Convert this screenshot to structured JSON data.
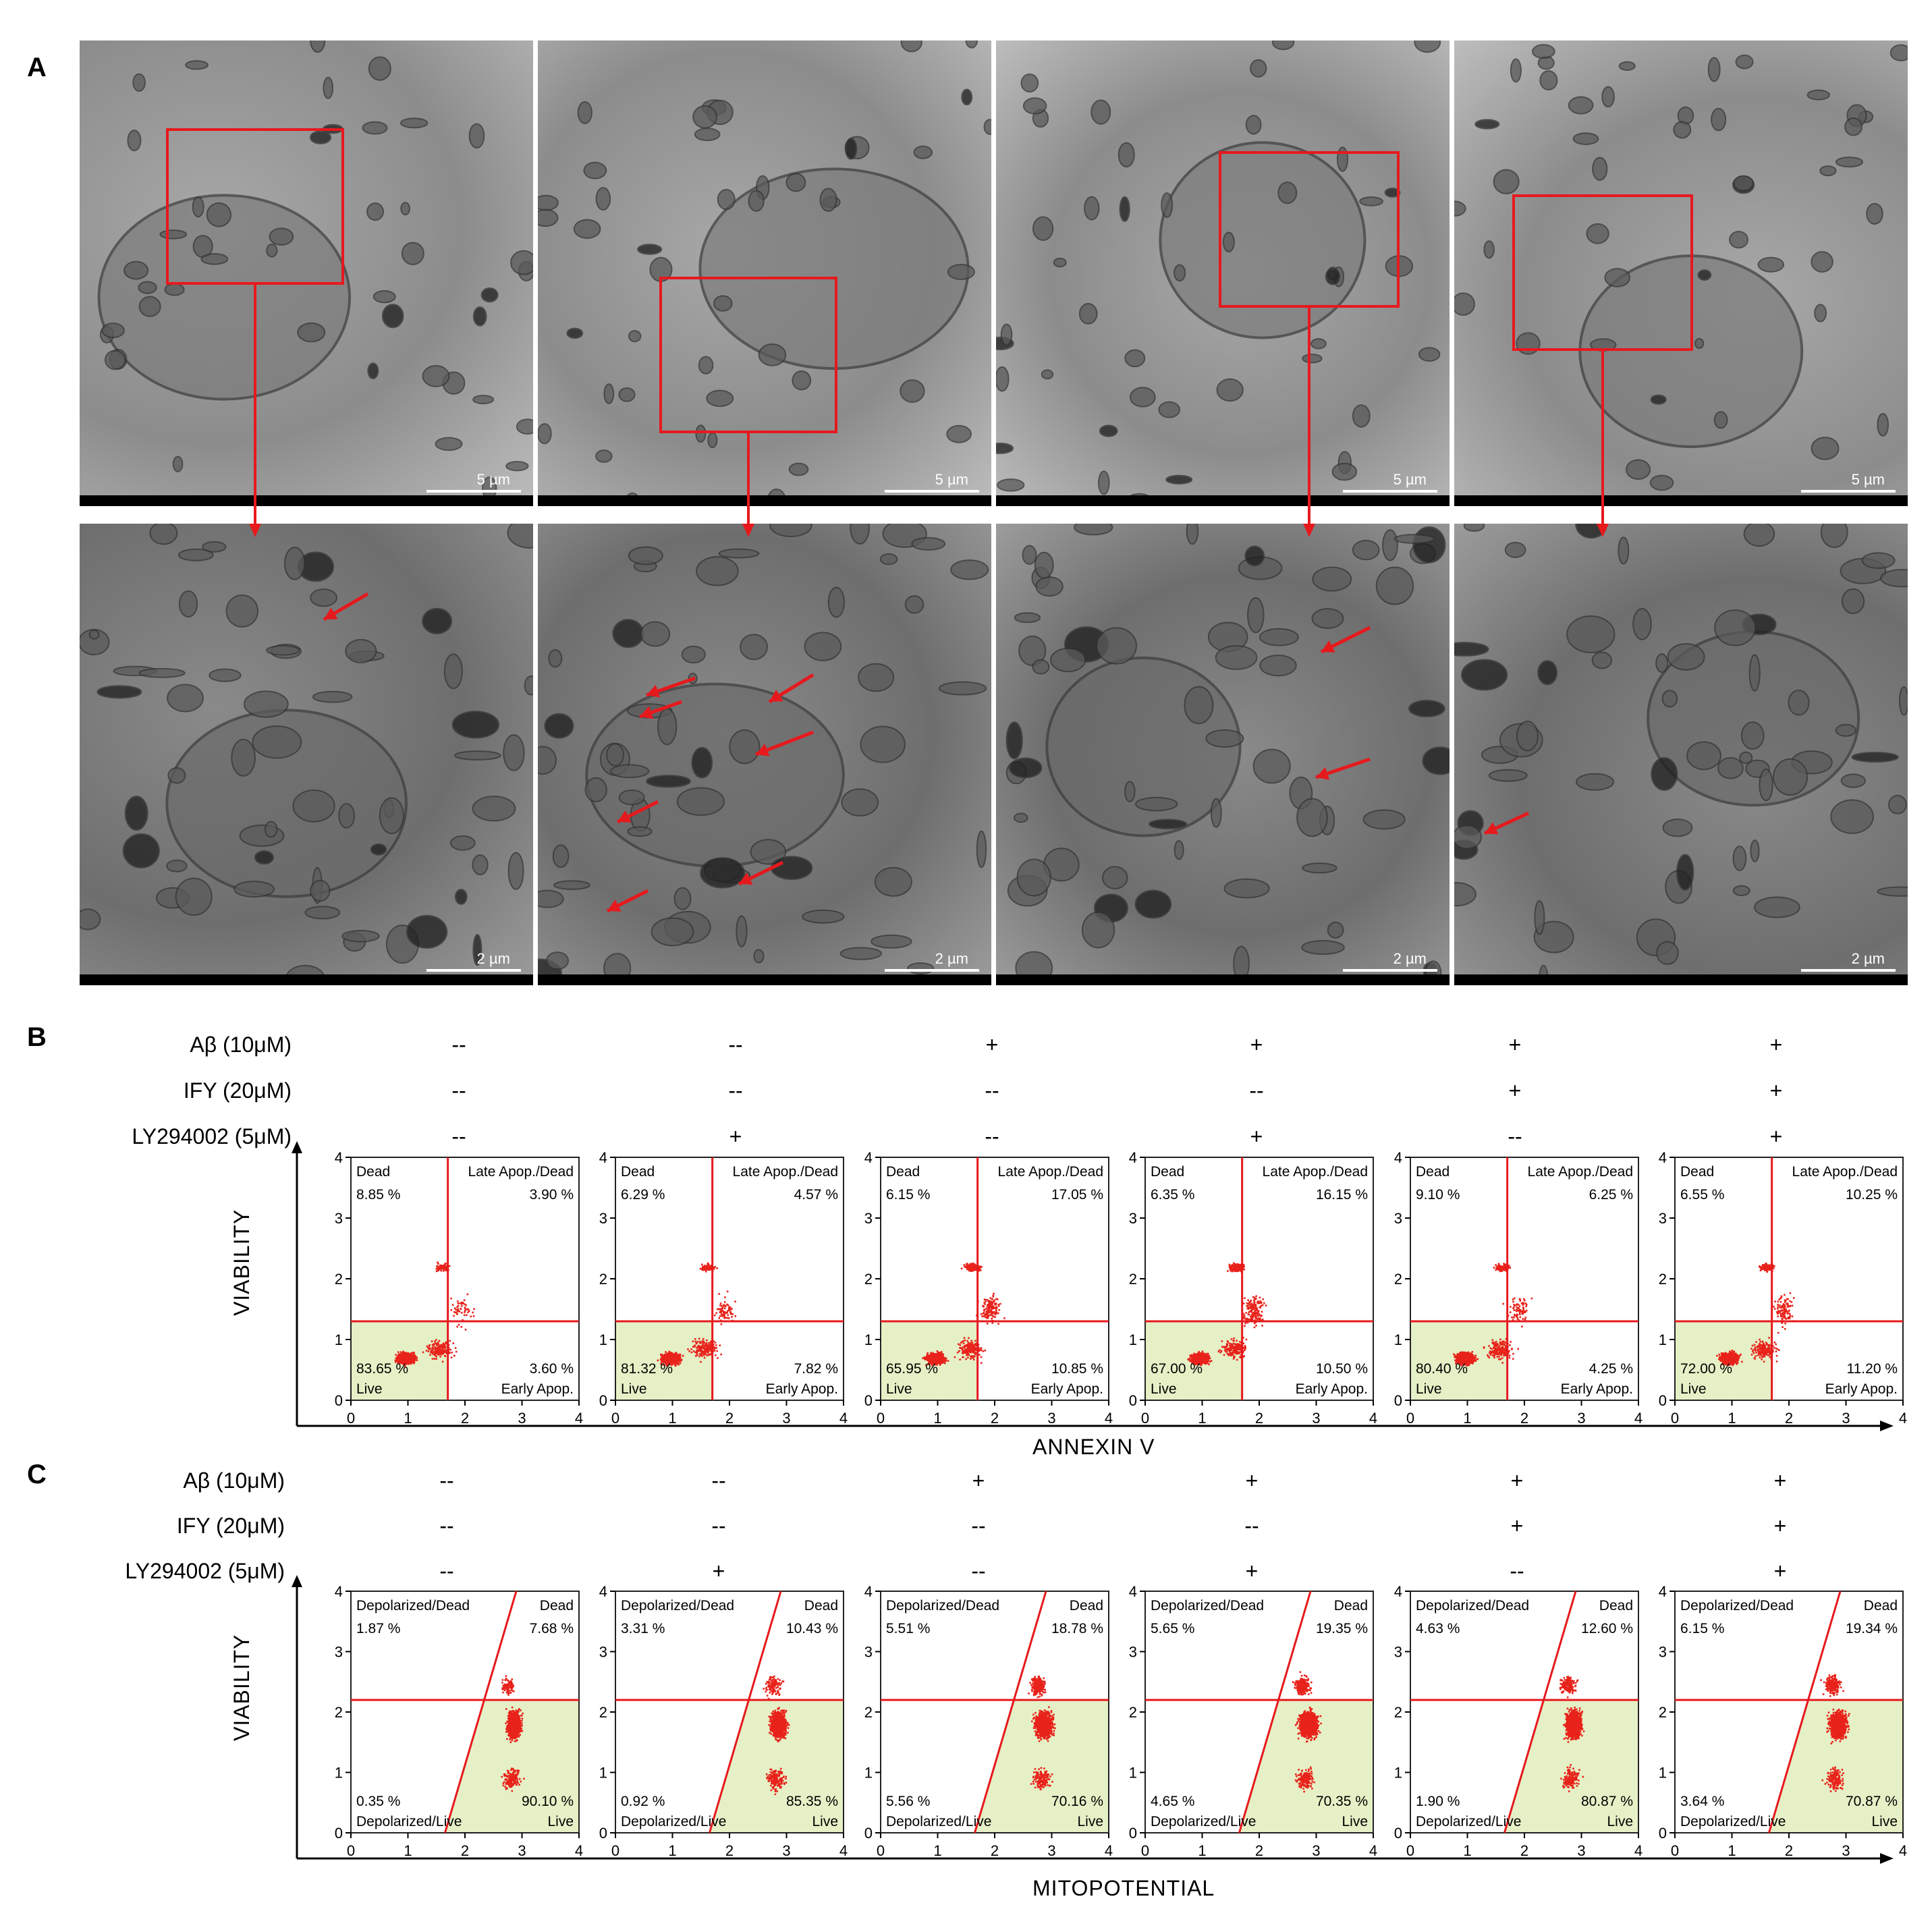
{
  "panels": {
    "a": {
      "letter": "A",
      "scale_top": "5 µm",
      "scale_bottom": "2 µm"
    },
    "b": {
      "letter": "B",
      "conditions": [
        {
          "label": "Aβ (10μM)",
          "values": [
            "--",
            "--",
            "+",
            "+",
            "+",
            "+"
          ]
        },
        {
          "label": "IFY (20μM)",
          "values": [
            "--",
            "--",
            "--",
            "--",
            "+",
            "+"
          ]
        },
        {
          "label": "LY294002 (5μM)",
          "values": [
            "--",
            "+",
            "--",
            "+",
            "--",
            "+"
          ]
        }
      ],
      "y_axis_title": "VIABILITY",
      "x_axis_title": "ANNEXIN  V",
      "tick_labels": [
        "0",
        "1",
        "2",
        "3",
        "4"
      ],
      "quadrant_names": {
        "tl": "Dead",
        "tr": "Late Apop./Dead",
        "bl": "Live",
        "br": "Early Apop."
      },
      "plots": [
        {
          "tl": "8.85 %",
          "tr": "3.90 %",
          "bl": "83.65 %",
          "br": "3.60 %"
        },
        {
          "tl": "6.29 %",
          "tr": "4.57 %",
          "bl": "81.32 %",
          "br": "7.82 %"
        },
        {
          "tl": "6.15 %",
          "tr": "17.05 %",
          "bl": "65.95 %",
          "br": "10.85 %"
        },
        {
          "tl": "6.35 %",
          "tr": "16.15 %",
          "bl": "67.00 %",
          "br": "10.50 %"
        },
        {
          "tl": "9.10 %",
          "tr": "6.25 %",
          "bl": "80.40 %",
          "br": "4.25 %"
        },
        {
          "tl": "6.55 %",
          "tr": "10.25 %",
          "bl": "72.00 %",
          "br": "11.20 %"
        }
      ]
    },
    "c": {
      "letter": "C",
      "conditions": [
        {
          "label": "Aβ (10μM)",
          "values": [
            "--",
            "--",
            "+",
            "+",
            "+",
            "+"
          ]
        },
        {
          "label": "IFY (20μM)",
          "values": [
            "--",
            "--",
            "--",
            "--",
            "+",
            "+"
          ]
        },
        {
          "label": "LY294002 (5μM)",
          "values": [
            "--",
            "+",
            "--",
            "+",
            "--",
            "+"
          ]
        }
      ],
      "y_axis_title": "VIABILITY",
      "x_axis_title": "MITOPOTENTIAL",
      "tick_labels": [
        "0",
        "1",
        "2",
        "3",
        "4"
      ],
      "quadrant_names": {
        "tl": "Depolarized/Dead",
        "tr": "Dead",
        "bl": "Depolarized/Live",
        "br": "Live"
      },
      "plots": [
        {
          "tl": "1.87 %",
          "tr": "7.68 %",
          "bl": "0.35 %",
          "br": "90.10 %"
        },
        {
          "tl": "3.31 %",
          "tr": "10.43 %",
          "bl": "0.92 %",
          "br": "85.35 %"
        },
        {
          "tl": "5.51 %",
          "tr": "18.78 %",
          "bl": "5.56 %",
          "br": "70.16 %"
        },
        {
          "tl": "5.65 %",
          "tr": "19.35 %",
          "bl": "4.65 %",
          "br": "70.35 %"
        },
        {
          "tl": "4.63 %",
          "tr": "12.60 %",
          "bl": "1.90 %",
          "br": "80.87 %"
        },
        {
          "tl": "6.15 %",
          "tr": "19.34 %",
          "bl": "3.64 %",
          "br": "70.87 %"
        }
      ]
    }
  },
  "colors": {
    "gate": "#e6191d",
    "live_fill": "#e6f0c6",
    "dots": "#e8231b"
  }
}
